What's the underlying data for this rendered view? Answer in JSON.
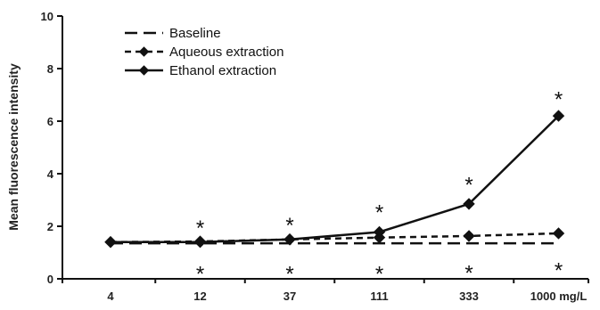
{
  "chart_data": {
    "type": "line",
    "categories": [
      "4",
      "12",
      "37",
      "111",
      "333",
      "1000 mg/L"
    ],
    "ylabel": "Mean fluorescence intensity",
    "ylim": [
      0,
      10
    ],
    "yticks": [
      "0",
      "2",
      "4",
      "6",
      "8",
      "10"
    ],
    "grid": false,
    "legend_position": "top-left",
    "series": [
      {
        "name": "Baseline",
        "values": [
          1.35,
          1.35,
          1.35,
          1.35,
          1.35,
          1.35
        ],
        "style": "long-dash",
        "marker": "none",
        "color": "#111111"
      },
      {
        "name": "Aqueous extraction",
        "values": [
          1.4,
          1.42,
          1.5,
          1.57,
          1.63,
          1.73
        ],
        "style": "short-dash",
        "marker": "diamond",
        "color": "#111111"
      },
      {
        "name": "Ethanol extraction",
        "values": [
          1.4,
          1.4,
          1.5,
          1.78,
          2.85,
          6.2
        ],
        "style": "solid",
        "marker": "diamond",
        "color": "#111111"
      }
    ],
    "annotations": [
      {
        "text": "*",
        "category_index": 1,
        "y": 2.2
      },
      {
        "text": "*",
        "category_index": 2,
        "y": 2.3
      },
      {
        "text": "*",
        "category_index": 3,
        "y": 2.8
      },
      {
        "text": "*",
        "category_index": 4,
        "y": 3.85
      },
      {
        "text": "*",
        "category_index": 5,
        "y": 7.1
      },
      {
        "text": "*",
        "category_index": 1,
        "y": 0.45
      },
      {
        "text": "*",
        "category_index": 2,
        "y": 0.45
      },
      {
        "text": "*",
        "category_index": 3,
        "y": 0.45
      },
      {
        "text": "*",
        "category_index": 4,
        "y": 0.5
      },
      {
        "text": "*",
        "category_index": 5,
        "y": 0.6
      }
    ]
  }
}
